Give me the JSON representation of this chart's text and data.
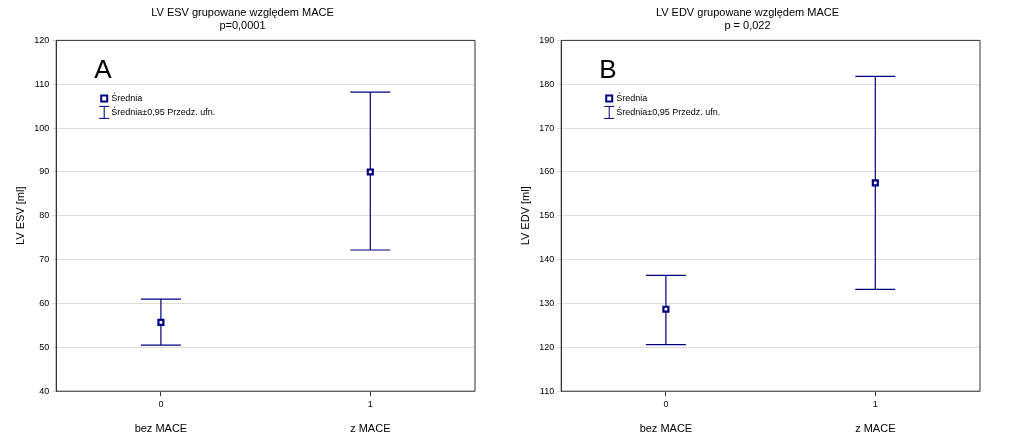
{
  "chart_data": [
    {
      "type": "scatter",
      "title": "LV ESV grupowane względem MACE",
      "subtitle": "p=0,0001",
      "ylabel": "LV ESV [ml]",
      "categories": [
        "0",
        "1"
      ],
      "series": [
        {
          "name": "Średnia",
          "color": "#000080",
          "values": [
            55.7,
            90.0
          ],
          "errors": [
            [
              50.5,
              61.0
            ],
            [
              72.2,
              108.2
            ]
          ]
        }
      ],
      "ylim": [
        40,
        120
      ],
      "yticks": [
        40,
        50,
        60,
        70,
        80,
        90,
        100,
        110,
        120
      ],
      "grid": "y",
      "legend": "top left",
      "marker": "square",
      "annotations": [
        "A",
        "Średnia±0,95 Przedz. ufn.",
        "bez MACE",
        "z MACE"
      ]
    },
    {
      "type": "scatter",
      "title": "LV EDV grupowane względem MACE",
      "subtitle": "p = 0,022",
      "ylabel": "LV EDV [ml]",
      "categories": [
        "0",
        "1"
      ],
      "series": [
        {
          "name": "Średnia",
          "color": "#000080",
          "values": [
            128.7,
            157.5
          ],
          "errors": [
            [
              120.6,
              136.4
            ],
            [
              133.2,
              181.8
            ]
          ]
        }
      ],
      "ylim": [
        110,
        190
      ],
      "yticks": [
        110,
        120,
        130,
        140,
        150,
        160,
        170,
        180,
        190
      ],
      "grid": "y",
      "legend": "top left",
      "marker": "square",
      "annotations": [
        "B",
        "Średnia±0,95 Przedz. ufn.",
        "bez MACE",
        "z MACE"
      ]
    }
  ]
}
